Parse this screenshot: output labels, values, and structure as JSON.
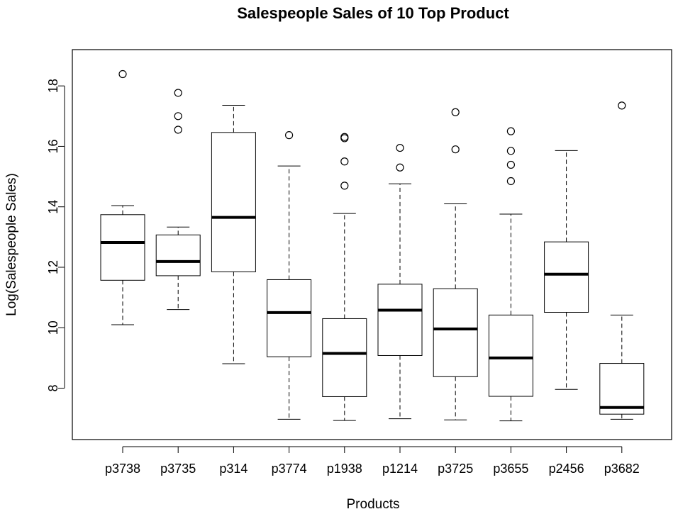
{
  "chart_data": {
    "type": "boxplot",
    "title": "Salespeople Sales of 10 Top Product",
    "xlabel": "Products",
    "ylabel": "Log(Salespeople Sales)",
    "ylim": [
      6.3,
      19.2
    ],
    "yticks": [
      8,
      10,
      12,
      14,
      16,
      18
    ],
    "grid": false,
    "categories": [
      "p3738",
      "p3735",
      "p314",
      "p3774",
      "p1938",
      "p1214",
      "p3725",
      "p3655",
      "p2456",
      "p3682"
    ],
    "boxes": [
      {
        "category": "p3738",
        "whisker_low": 10.1,
        "q1": 11.57,
        "median": 12.82,
        "q3": 13.74,
        "whisker_high": 14.04,
        "outliers": [
          18.39
        ]
      },
      {
        "category": "p3735",
        "whisker_low": 10.6,
        "q1": 11.72,
        "median": 12.19,
        "q3": 13.07,
        "whisker_high": 13.33,
        "outliers": [
          16.55,
          17.0,
          17.77
        ]
      },
      {
        "category": "p314",
        "whisker_low": 8.81,
        "q1": 11.85,
        "median": 13.65,
        "q3": 16.46,
        "whisker_high": 17.36,
        "outliers": []
      },
      {
        "category": "p3774",
        "whisker_low": 6.97,
        "q1": 9.04,
        "median": 10.5,
        "q3": 11.59,
        "whisker_high": 15.35,
        "outliers": [
          16.37
        ]
      },
      {
        "category": "p1938",
        "whisker_low": 6.93,
        "q1": 7.72,
        "median": 9.15,
        "q3": 10.3,
        "whisker_high": 13.78,
        "outliers": [
          14.7,
          15.5,
          16.27,
          16.31
        ]
      },
      {
        "category": "p1214",
        "whisker_low": 6.99,
        "q1": 9.08,
        "median": 10.58,
        "q3": 11.44,
        "whisker_high": 14.76,
        "outliers": [
          15.3,
          15.95
        ]
      },
      {
        "category": "p3725",
        "whisker_low": 6.95,
        "q1": 8.38,
        "median": 9.96,
        "q3": 11.29,
        "whisker_high": 14.1,
        "outliers": [
          15.9,
          17.13
        ]
      },
      {
        "category": "p3655",
        "whisker_low": 6.92,
        "q1": 7.73,
        "median": 9.0,
        "q3": 10.42,
        "whisker_high": 13.76,
        "outliers": [
          14.85,
          15.39,
          15.85,
          16.5
        ]
      },
      {
        "category": "p2456",
        "whisker_low": 7.96,
        "q1": 10.51,
        "median": 11.77,
        "q3": 12.84,
        "whisker_high": 15.86,
        "outliers": []
      },
      {
        "category": "p3682",
        "whisker_low": 6.97,
        "q1": 7.14,
        "median": 7.36,
        "q3": 8.82,
        "whisker_high": 10.42,
        "outliers": [
          17.35
        ]
      }
    ]
  }
}
